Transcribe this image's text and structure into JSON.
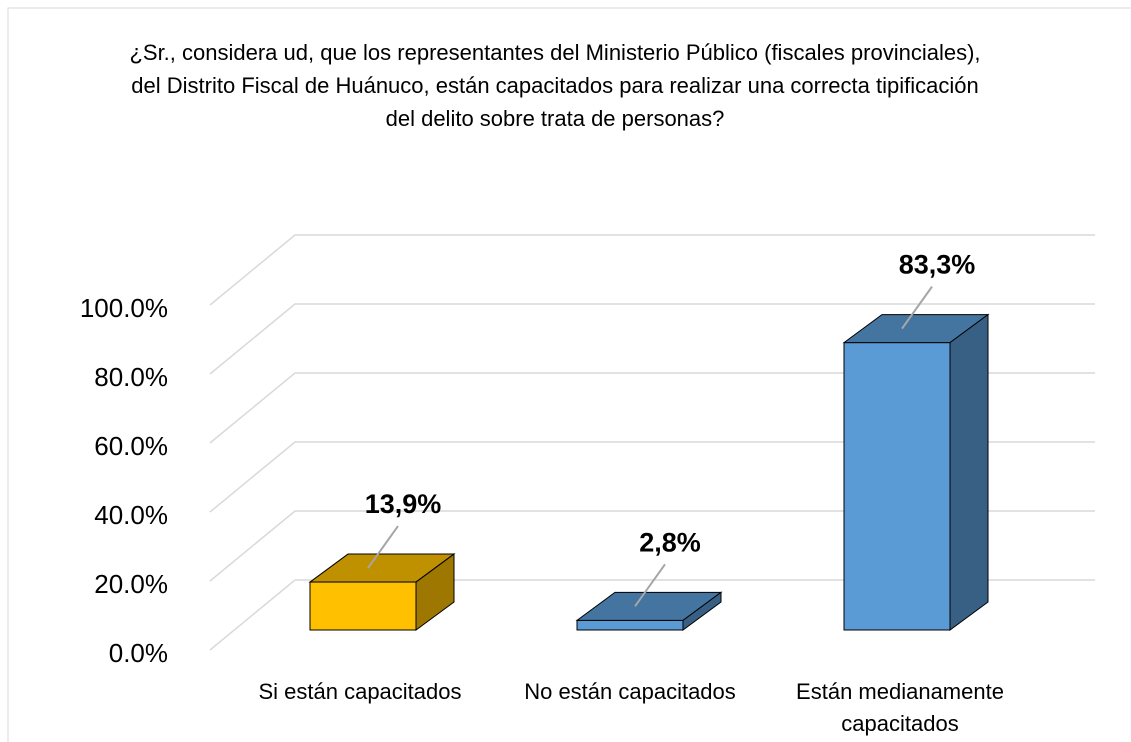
{
  "chart_data": {
    "type": "bar3d",
    "title": "¿Sr., considera ud, que los representantes del Ministerio Público (fiscales provinciales), del Distrito Fiscal de Huánuco, están capacitados para realizar una correcta tipificación del delito sobre trata de personas?",
    "categories": [
      "Si están capacitados",
      "No están capacitados",
      "Están medianamente capacitados"
    ],
    "values": [
      13.9,
      2.8,
      83.3
    ],
    "value_labels": [
      "13,9%",
      "2,8%",
      "83,3%"
    ],
    "colors": [
      "#ffc000",
      "#5b9bd5",
      "#5b9bd5"
    ],
    "ylim": [
      0,
      100
    ],
    "yticks": [
      {
        "value": 0,
        "label": "0.0%"
      },
      {
        "value": 20,
        "label": "20.0%"
      },
      {
        "value": 40,
        "label": "40.0%"
      },
      {
        "value": 60,
        "label": "60.0%"
      },
      {
        "value": 80,
        "label": "80.0%"
      },
      {
        "value": 100,
        "label": "100.0%"
      }
    ],
    "grid": true
  }
}
